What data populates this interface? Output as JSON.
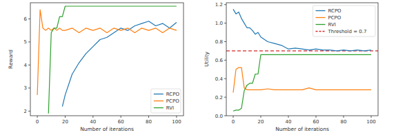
{
  "chart_data": [
    {
      "type": "line",
      "x_label": "Number of iterations",
      "y_label": "Reward",
      "x": [
        0,
        2,
        4,
        6,
        8,
        10,
        12,
        14,
        16,
        18,
        20,
        25,
        30,
        35,
        40,
        45,
        50,
        55,
        60,
        65,
        70,
        75,
        80,
        85,
        90,
        95,
        100
      ],
      "xlim": [
        -5,
        105
      ],
      "xticks": [
        0,
        20,
        40,
        60,
        80,
        100
      ],
      "ylim": [
        1.8,
        6.7
      ],
      "yticks": [
        2,
        3,
        4,
        5,
        6
      ],
      "grid": false,
      "legend": "lower right",
      "series": [
        {
          "name": "RCPO",
          "color": "#1f77b4",
          "values": [
            null,
            null,
            null,
            null,
            null,
            null,
            null,
            null,
            null,
            2.2,
            2.7,
            3.6,
            4.1,
            4.5,
            4.8,
            5.1,
            5.2,
            5.4,
            5.6,
            5.5,
            5.7,
            5.8,
            5.9,
            5.7,
            5.8,
            5.6,
            5.85
          ]
        },
        {
          "name": "PCPO",
          "color": "#ff7f0e",
          "values": [
            2.7,
            6.4,
            5.6,
            5.5,
            5.6,
            5.5,
            5.6,
            5.5,
            5.6,
            5.5,
            5.5,
            5.6,
            5.4,
            5.6,
            5.5,
            5.6,
            5.4,
            5.6,
            5.5,
            5.6,
            5.4,
            5.6,
            5.5,
            5.6,
            5.4,
            5.6,
            5.5
          ]
        },
        {
          "name": "RVI",
          "color": "#2ca02c",
          "values": [
            null,
            null,
            null,
            null,
            1.9,
            5.4,
            5.6,
            5.6,
            6.1,
            6.1,
            6.55,
            6.55,
            6.55,
            6.55,
            6.55,
            6.55,
            6.55,
            6.55,
            6.55,
            6.55,
            6.55,
            6.55,
            6.55,
            6.55,
            6.55,
            6.55,
            6.55
          ]
        }
      ]
    },
    {
      "type": "line",
      "x_label": "Number of iterations",
      "y_label": "Utility",
      "x": [
        0,
        2,
        4,
        6,
        8,
        10,
        12,
        14,
        16,
        18,
        20,
        25,
        30,
        35,
        40,
        45,
        50,
        55,
        60,
        65,
        70,
        75,
        80,
        85,
        90,
        95,
        100
      ],
      "xlim": [
        -5,
        105
      ],
      "xticks": [
        0,
        20,
        40,
        60,
        80,
        100
      ],
      "ylim": [
        0,
        1.22
      ],
      "yticks": [
        {
          "value": 0,
          "label": "0.0"
        },
        {
          "value": 0.2,
          "label": "0.2"
        },
        {
          "value": 0.4,
          "label": "0.4"
        },
        {
          "value": 0.6,
          "label": "0.6"
        },
        {
          "value": 0.8,
          "label": "0.8"
        },
        {
          "value": 1.0,
          "label": "1.0"
        },
        {
          "value": 1.2,
          "label": "1.2"
        }
      ],
      "grid": false,
      "legend": "upper right",
      "series": [
        {
          "name": "RCPO",
          "color": "#1f77b4",
          "values": [
            1.15,
            1.1,
            1.12,
            1.05,
            1.0,
            0.95,
            0.95,
            0.92,
            0.88,
            0.9,
            0.85,
            0.8,
            0.78,
            0.76,
            0.72,
            0.73,
            0.72,
            0.71,
            0.72,
            0.71,
            0.71,
            0.7,
            0.71,
            0.7,
            0.71,
            0.7,
            0.71
          ]
        },
        {
          "name": "PCPO",
          "color": "#ff7f0e",
          "values": [
            0.25,
            0.5,
            0.52,
            0.52,
            0.3,
            0.28,
            0.28,
            0.28,
            0.28,
            0.28,
            0.28,
            0.29,
            0.28,
            0.28,
            0.28,
            0.28,
            0.28,
            0.3,
            0.28,
            0.28,
            0.28,
            0.28,
            0.28,
            0.28,
            0.28,
            0.28,
            0.28
          ]
        },
        {
          "name": "RVI",
          "color": "#2ca02c",
          "values": [
            0.05,
            0.06,
            0.06,
            0.08,
            0.27,
            0.33,
            0.35,
            0.35,
            0.45,
            0.45,
            0.66,
            0.66,
            0.66,
            0.66,
            0.66,
            0.66,
            0.66,
            0.66,
            0.66,
            0.66,
            0.66,
            0.66,
            0.66,
            0.66,
            0.66,
            0.66,
            0.66
          ]
        }
      ],
      "hlines": [
        {
          "value": 0.7,
          "label": "Threshold = 0.7",
          "color": "#d62728",
          "line_style": "dashed"
        }
      ]
    }
  ]
}
